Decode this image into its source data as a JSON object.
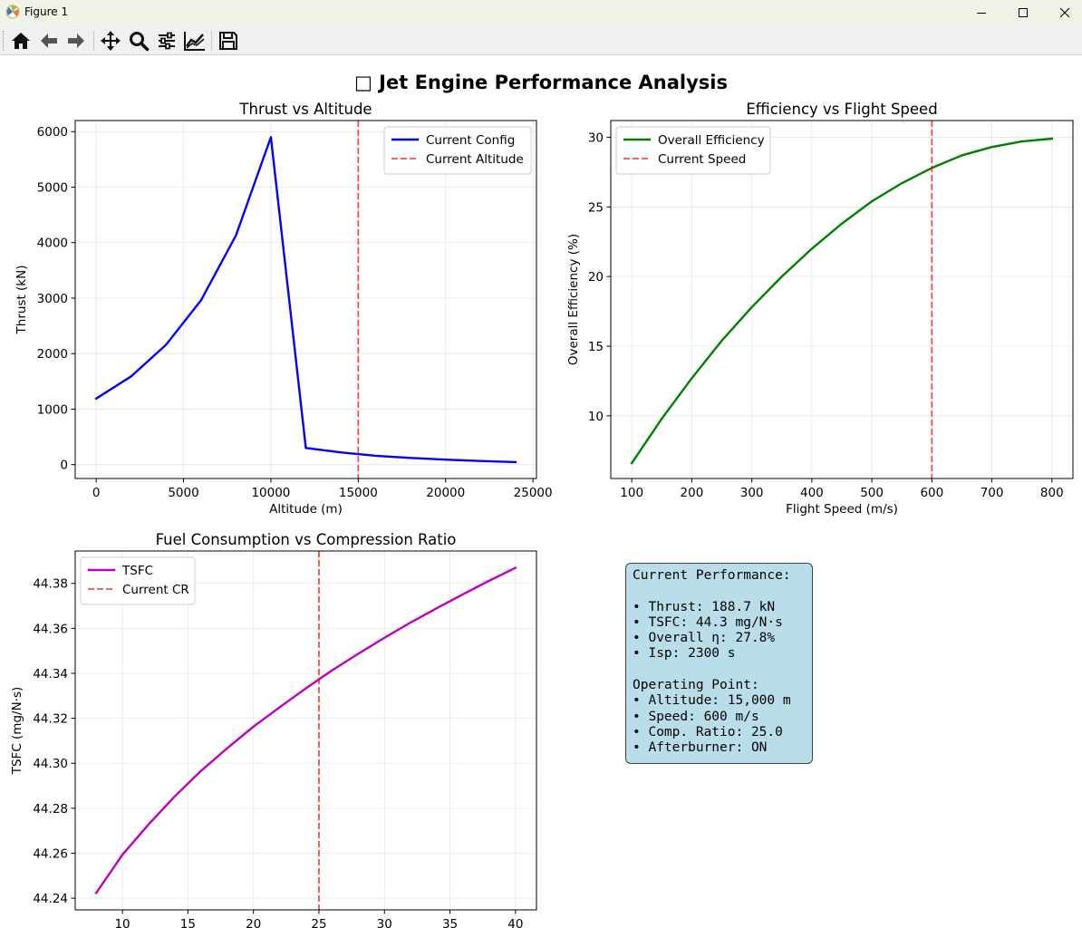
{
  "window": {
    "title": "Figure 1"
  },
  "toolbar": {
    "buttons": [
      {
        "name": "home-icon",
        "label": "Home"
      },
      {
        "name": "back-icon",
        "label": "Back"
      },
      {
        "name": "forward-icon",
        "label": "Forward"
      },
      {
        "name": "pan-icon",
        "label": "Pan"
      },
      {
        "name": "zoom-icon",
        "label": "Zoom"
      },
      {
        "name": "configure-subplots-icon",
        "label": "Subplots"
      },
      {
        "name": "edit-axis-icon",
        "label": "Customize"
      },
      {
        "name": "save-icon",
        "label": "Save"
      }
    ]
  },
  "figure": {
    "suptitle": "□ Jet Engine Performance Analysis"
  },
  "chart_data": [
    {
      "type": "line",
      "title": "Thrust vs Altitude",
      "xlabel": "Altitude (m)",
      "ylabel": "Thrust (kN)",
      "xlim": [
        -1200,
        25200
      ],
      "ylim": [
        -250,
        6200
      ],
      "xticks": [
        0,
        5000,
        10000,
        15000,
        20000,
        25000
      ],
      "yticks": [
        0,
        1000,
        2000,
        3000,
        4000,
        5000,
        6000
      ],
      "grid": true,
      "legend_position": "top-right",
      "series": [
        {
          "name": "Current Config",
          "color": "#0000ff",
          "style": "solid",
          "x": [
            0,
            2000,
            4000,
            6000,
            8000,
            10000,
            12000,
            14000,
            16000,
            18000,
            20000,
            22000,
            24000
          ],
          "y": [
            1190,
            1590,
            2160,
            2960,
            4130,
            5900,
            300,
            220,
            160,
            120,
            90,
            65,
            45
          ]
        }
      ],
      "reference_lines": [
        {
          "name": "Current Altitude",
          "orientation": "vertical",
          "value": 15000,
          "color": "#ff0000",
          "style": "dashed"
        }
      ]
    },
    {
      "type": "line",
      "title": "Efficiency vs Flight Speed",
      "xlabel": "Flight Speed (m/s)",
      "ylabel": "Overall Efficiency (%)",
      "xlim": [
        65,
        835
      ],
      "ylim": [
        5.5,
        31.2
      ],
      "xticks": [
        100,
        200,
        300,
        400,
        500,
        600,
        700,
        800
      ],
      "yticks": [
        10,
        15,
        20,
        25,
        30
      ],
      "grid": true,
      "legend_position": "top-left",
      "series": [
        {
          "name": "Overall Efficiency",
          "color": "#008000",
          "style": "solid",
          "x": [
            100,
            150,
            200,
            250,
            300,
            350,
            400,
            450,
            500,
            550,
            600,
            650,
            700,
            750,
            800
          ],
          "y": [
            6.6,
            9.8,
            12.7,
            15.4,
            17.8,
            20.0,
            22.0,
            23.8,
            25.4,
            26.7,
            27.8,
            28.7,
            29.3,
            29.7,
            29.9
          ]
        }
      ],
      "reference_lines": [
        {
          "name": "Current Speed",
          "orientation": "vertical",
          "value": 600,
          "color": "#ff0000",
          "style": "dashed"
        }
      ]
    },
    {
      "type": "line",
      "title": "Fuel Consumption vs Compression Ratio",
      "xlabel": "",
      "ylabel": "TSFC (mg/N·s)",
      "xlim": [
        6.4,
        41.6
      ],
      "ylim": [
        44.2348,
        44.3944
      ],
      "xticks": [
        10,
        15,
        20,
        25,
        30,
        35,
        40
      ],
      "yticks": [
        44.24,
        44.26,
        44.28,
        44.3,
        44.32,
        44.34,
        44.36,
        44.38
      ],
      "ytick_labels": [
        "44.24",
        "44.26",
        "44.28",
        "44.30",
        "44.32",
        "44.34",
        "44.36",
        "44.38"
      ],
      "grid": true,
      "legend_position": "top-left",
      "series": [
        {
          "name": "TSFC",
          "color": "#bf00bf",
          "style": "solid",
          "x": [
            8,
            10,
            12,
            14,
            16,
            18,
            20,
            22,
            24,
            26,
            28,
            30,
            32,
            34,
            36,
            38,
            40
          ],
          "y": [
            44.2423,
            44.2593,
            44.2728,
            44.2853,
            44.2966,
            44.3067,
            44.3163,
            44.3249,
            44.3333,
            44.3413,
            44.3487,
            44.3558,
            44.3626,
            44.369,
            44.3752,
            44.3812,
            44.3869
          ]
        }
      ],
      "reference_lines": [
        {
          "name": "Current CR",
          "orientation": "vertical",
          "value": 25,
          "color": "#ff0000",
          "style": "dashed"
        }
      ]
    }
  ],
  "info_panel": {
    "lines": [
      "Current Performance:",
      "",
      "• Thrust: 188.7 kN",
      "• TSFC: 44.3 mg/N·s",
      "• Overall η: 27.8%",
      "• Isp: 2300 s",
      "",
      "Operating Point:",
      "• Altitude: 15,000 m",
      "• Speed: 600 m/s",
      "• Comp. Ratio: 25.0",
      "• Afterburner: ON"
    ]
  }
}
